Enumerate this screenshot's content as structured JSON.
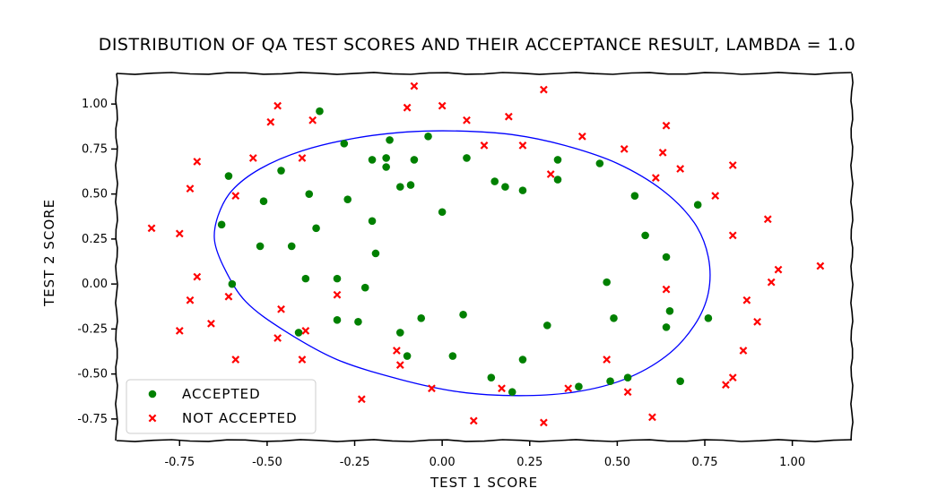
{
  "chart_data": {
    "type": "scatter",
    "title": "DISTRIBUTION OF QA TEST SCORES AND THEIR ACCEPTANCE RESULT, LAMBDA = 1.0",
    "xlabel": "TEST 1 SCORE",
    "ylabel": "TEST 2 SCORE",
    "xlim": [
      -0.93,
      1.17
    ],
    "ylim": [
      -0.87,
      1.17
    ],
    "xticks": [
      -0.75,
      -0.5,
      -0.25,
      0.0,
      0.25,
      0.5,
      0.75,
      1.0
    ],
    "xtick_labels": [
      "-0.75",
      "-0.50",
      "-0.25",
      "0.00",
      "0.25",
      "0.50",
      "0.75",
      "1.00"
    ],
    "yticks": [
      -0.75,
      -0.5,
      -0.25,
      0.0,
      0.25,
      0.5,
      0.75,
      1.0
    ],
    "ytick_labels": [
      "-0.75",
      "-0.50",
      "-0.25",
      "0.00",
      "0.25",
      "0.50",
      "0.75",
      "1.00"
    ],
    "grid": false,
    "legend_position": "lower-left",
    "colors": {
      "accepted": "#008000",
      "not_accepted": "#ff0000",
      "boundary": "#0000ff"
    },
    "series": [
      {
        "name": "ACCEPTED",
        "marker": "circle",
        "points": [
          [
            -0.35,
            0.96
          ],
          [
            -0.04,
            0.82
          ],
          [
            -0.15,
            0.8
          ],
          [
            -0.28,
            0.78
          ],
          [
            -0.16,
            0.7
          ],
          [
            -0.2,
            0.69
          ],
          [
            -0.08,
            0.69
          ],
          [
            0.07,
            0.7
          ],
          [
            -0.46,
            0.63
          ],
          [
            -0.16,
            0.65
          ],
          [
            0.33,
            0.69
          ],
          [
            0.45,
            0.67
          ],
          [
            -0.61,
            0.6
          ],
          [
            -0.12,
            0.54
          ],
          [
            -0.09,
            0.55
          ],
          [
            0.15,
            0.57
          ],
          [
            0.18,
            0.54
          ],
          [
            0.23,
            0.52
          ],
          [
            0.33,
            0.58
          ],
          [
            0.55,
            0.49
          ],
          [
            -0.38,
            0.5
          ],
          [
            -0.51,
            0.46
          ],
          [
            -0.27,
            0.47
          ],
          [
            0.73,
            0.44
          ],
          [
            0.0,
            0.4
          ],
          [
            -0.2,
            0.35
          ],
          [
            -0.63,
            0.33
          ],
          [
            -0.36,
            0.31
          ],
          [
            0.58,
            0.27
          ],
          [
            -0.52,
            0.21
          ],
          [
            -0.43,
            0.21
          ],
          [
            -0.19,
            0.17
          ],
          [
            0.64,
            0.15
          ],
          [
            -0.39,
            0.03
          ],
          [
            -0.3,
            0.03
          ],
          [
            -0.6,
            0.0
          ],
          [
            0.47,
            0.01
          ],
          [
            -0.22,
            -0.02
          ],
          [
            0.65,
            -0.15
          ],
          [
            0.06,
            -0.17
          ],
          [
            -0.06,
            -0.19
          ],
          [
            -0.3,
            -0.2
          ],
          [
            -0.24,
            -0.21
          ],
          [
            0.49,
            -0.19
          ],
          [
            0.76,
            -0.19
          ],
          [
            0.3,
            -0.23
          ],
          [
            0.64,
            -0.24
          ],
          [
            -0.41,
            -0.27
          ],
          [
            -0.12,
            -0.27
          ],
          [
            -0.1,
            -0.4
          ],
          [
            0.03,
            -0.4
          ],
          [
            0.23,
            -0.42
          ],
          [
            0.14,
            -0.52
          ],
          [
            0.53,
            -0.52
          ],
          [
            0.68,
            -0.54
          ],
          [
            0.48,
            -0.54
          ],
          [
            0.39,
            -0.57
          ],
          [
            0.2,
            -0.6
          ]
        ]
      },
      {
        "name": "NOT ACCEPTED",
        "marker": "x",
        "points": [
          [
            -0.08,
            1.1
          ],
          [
            0.29,
            1.08
          ],
          [
            -0.47,
            0.99
          ],
          [
            0.0,
            0.99
          ],
          [
            -0.1,
            0.98
          ],
          [
            -0.49,
            0.9
          ],
          [
            -0.37,
            0.91
          ],
          [
            0.07,
            0.91
          ],
          [
            0.19,
            0.93
          ],
          [
            0.64,
            0.88
          ],
          [
            0.4,
            0.82
          ],
          [
            0.12,
            0.77
          ],
          [
            0.23,
            0.77
          ],
          [
            0.52,
            0.75
          ],
          [
            0.63,
            0.73
          ],
          [
            -0.54,
            0.7
          ],
          [
            -0.4,
            0.7
          ],
          [
            -0.7,
            0.68
          ],
          [
            0.83,
            0.66
          ],
          [
            0.31,
            0.61
          ],
          [
            0.61,
            0.59
          ],
          [
            0.68,
            0.64
          ],
          [
            -0.72,
            0.53
          ],
          [
            -0.59,
            0.49
          ],
          [
            0.78,
            0.49
          ],
          [
            -0.83,
            0.31
          ],
          [
            -0.75,
            0.28
          ],
          [
            0.93,
            0.36
          ],
          [
            0.83,
            0.27
          ],
          [
            1.08,
            0.1
          ],
          [
            0.96,
            0.08
          ],
          [
            0.94,
            0.01
          ],
          [
            -0.7,
            0.04
          ],
          [
            0.64,
            -0.03
          ],
          [
            -0.72,
            -0.09
          ],
          [
            -0.61,
            -0.07
          ],
          [
            -0.3,
            -0.06
          ],
          [
            0.87,
            -0.09
          ],
          [
            -0.46,
            -0.14
          ],
          [
            0.9,
            -0.21
          ],
          [
            -0.66,
            -0.22
          ],
          [
            -0.75,
            -0.26
          ],
          [
            -0.39,
            -0.26
          ],
          [
            -0.47,
            -0.3
          ],
          [
            -0.13,
            -0.37
          ],
          [
            0.86,
            -0.37
          ],
          [
            -0.4,
            -0.42
          ],
          [
            -0.59,
            -0.42
          ],
          [
            -0.12,
            -0.45
          ],
          [
            0.47,
            -0.42
          ],
          [
            0.83,
            -0.52
          ],
          [
            0.81,
            -0.56
          ],
          [
            -0.03,
            -0.58
          ],
          [
            0.17,
            -0.58
          ],
          [
            0.36,
            -0.58
          ],
          [
            0.53,
            -0.6
          ],
          [
            -0.23,
            -0.64
          ],
          [
            0.09,
            -0.76
          ],
          [
            0.29,
            -0.77
          ],
          [
            0.6,
            -0.74
          ]
        ]
      }
    ],
    "decision_boundary": {
      "name": "",
      "shape": "closed-curve",
      "points": [
        [
          -0.64,
          0.38
        ],
        [
          -0.6,
          0.52
        ],
        [
          -0.52,
          0.64
        ],
        [
          -0.4,
          0.74
        ],
        [
          -0.25,
          0.81
        ],
        [
          -0.1,
          0.845
        ],
        [
          0.05,
          0.85
        ],
        [
          0.2,
          0.83
        ],
        [
          0.35,
          0.77
        ],
        [
          0.5,
          0.67
        ],
        [
          0.63,
          0.52
        ],
        [
          0.72,
          0.34
        ],
        [
          0.76,
          0.15
        ],
        [
          0.76,
          -0.05
        ],
        [
          0.72,
          -0.23
        ],
        [
          0.64,
          -0.4
        ],
        [
          0.52,
          -0.53
        ],
        [
          0.38,
          -0.6
        ],
        [
          0.22,
          -0.62
        ],
        [
          0.05,
          -0.6
        ],
        [
          -0.12,
          -0.53
        ],
        [
          -0.3,
          -0.42
        ],
        [
          -0.45,
          -0.26
        ],
        [
          -0.56,
          -0.1
        ],
        [
          -0.62,
          0.08
        ],
        [
          -0.65,
          0.24
        ]
      ]
    },
    "legend": [
      {
        "label": "ACCEPTED",
        "marker": "circle"
      },
      {
        "label": "NOT ACCEPTED",
        "marker": "x"
      }
    ]
  }
}
